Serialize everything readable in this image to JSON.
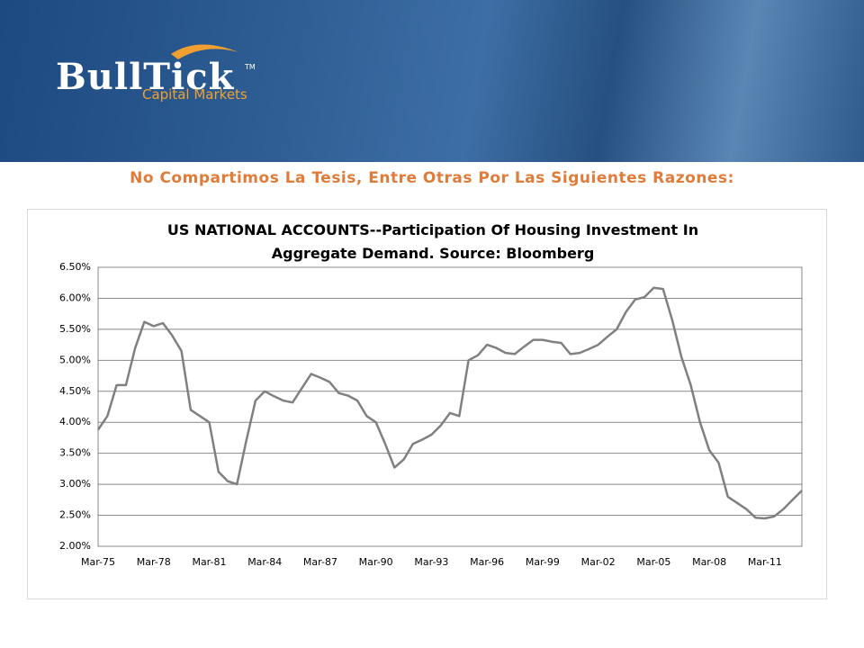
{
  "header": {
    "logo_name": "BullTick",
    "logo_tm": "TM",
    "logo_sub": "Capital Markets"
  },
  "heading": "No Compartimos La Tesis, Entre Otras Por Las Siguientes Razones:",
  "chart_data": {
    "type": "line",
    "title": "US NATIONAL ACCOUNTS--Participation Of Housing Investment In Aggregate Demand. Source: Bloomberg",
    "categories": [
      "Mar-75",
      null,
      null,
      null,
      null,
      null,
      "Mar-78",
      null,
      null,
      null,
      null,
      null,
      "Mar-81",
      null,
      null,
      null,
      null,
      null,
      "Mar-84",
      null,
      null,
      null,
      null,
      null,
      "Mar-87",
      null,
      null,
      null,
      null,
      null,
      "Mar-90",
      null,
      null,
      null,
      null,
      null,
      "Mar-93",
      null,
      null,
      null,
      null,
      null,
      "Mar-96",
      null,
      null,
      null,
      null,
      null,
      "Mar-99",
      null,
      null,
      null,
      null,
      null,
      "Mar-02",
      null,
      null,
      null,
      null,
      null,
      "Mar-05",
      null,
      null,
      null,
      null,
      null,
      "Mar-08",
      null,
      null,
      null,
      null,
      null,
      "Mar-11",
      null,
      null,
      null,
      null
    ],
    "values": [
      3.88,
      4.1,
      4.6,
      4.6,
      5.2,
      5.62,
      5.55,
      5.6,
      5.4,
      5.15,
      4.2,
      4.1,
      4.0,
      3.2,
      3.05,
      3.0,
      3.7,
      4.35,
      4.5,
      4.42,
      4.35,
      4.32,
      4.55,
      4.78,
      4.72,
      4.65,
      4.47,
      4.43,
      4.35,
      4.1,
      4.0,
      3.65,
      3.27,
      3.4,
      3.65,
      3.72,
      3.8,
      3.95,
      4.15,
      4.1,
      5.0,
      5.08,
      5.25,
      5.2,
      5.12,
      5.1,
      5.22,
      5.33,
      5.33,
      5.3,
      5.28,
      5.1,
      5.12,
      5.18,
      5.25,
      5.38,
      5.5,
      5.78,
      5.98,
      6.02,
      6.17,
      6.15,
      5.65,
      5.05,
      4.6,
      4.0,
      3.55,
      3.35,
      2.8,
      2.7,
      2.6,
      2.46,
      2.45,
      2.48,
      2.6,
      2.75,
      2.9
    ],
    "color": "#808080",
    "ylim": [
      2.0,
      6.5
    ],
    "yticks": [
      {
        "value": 2.0,
        "label": "2.00%"
      },
      {
        "value": 2.5,
        "label": "2.50%"
      },
      {
        "value": 3.0,
        "label": "3.00%"
      },
      {
        "value": 3.5,
        "label": "3.50%"
      },
      {
        "value": 4.0,
        "label": "4.00%"
      },
      {
        "value": 4.5,
        "label": "4.50%"
      },
      {
        "value": 5.0,
        "label": "5.00%"
      },
      {
        "value": 5.5,
        "label": "5.50%"
      },
      {
        "value": 6.0,
        "label": "6.00%"
      },
      {
        "value": 6.5,
        "label": "6.50%"
      }
    ],
    "grid": true
  }
}
